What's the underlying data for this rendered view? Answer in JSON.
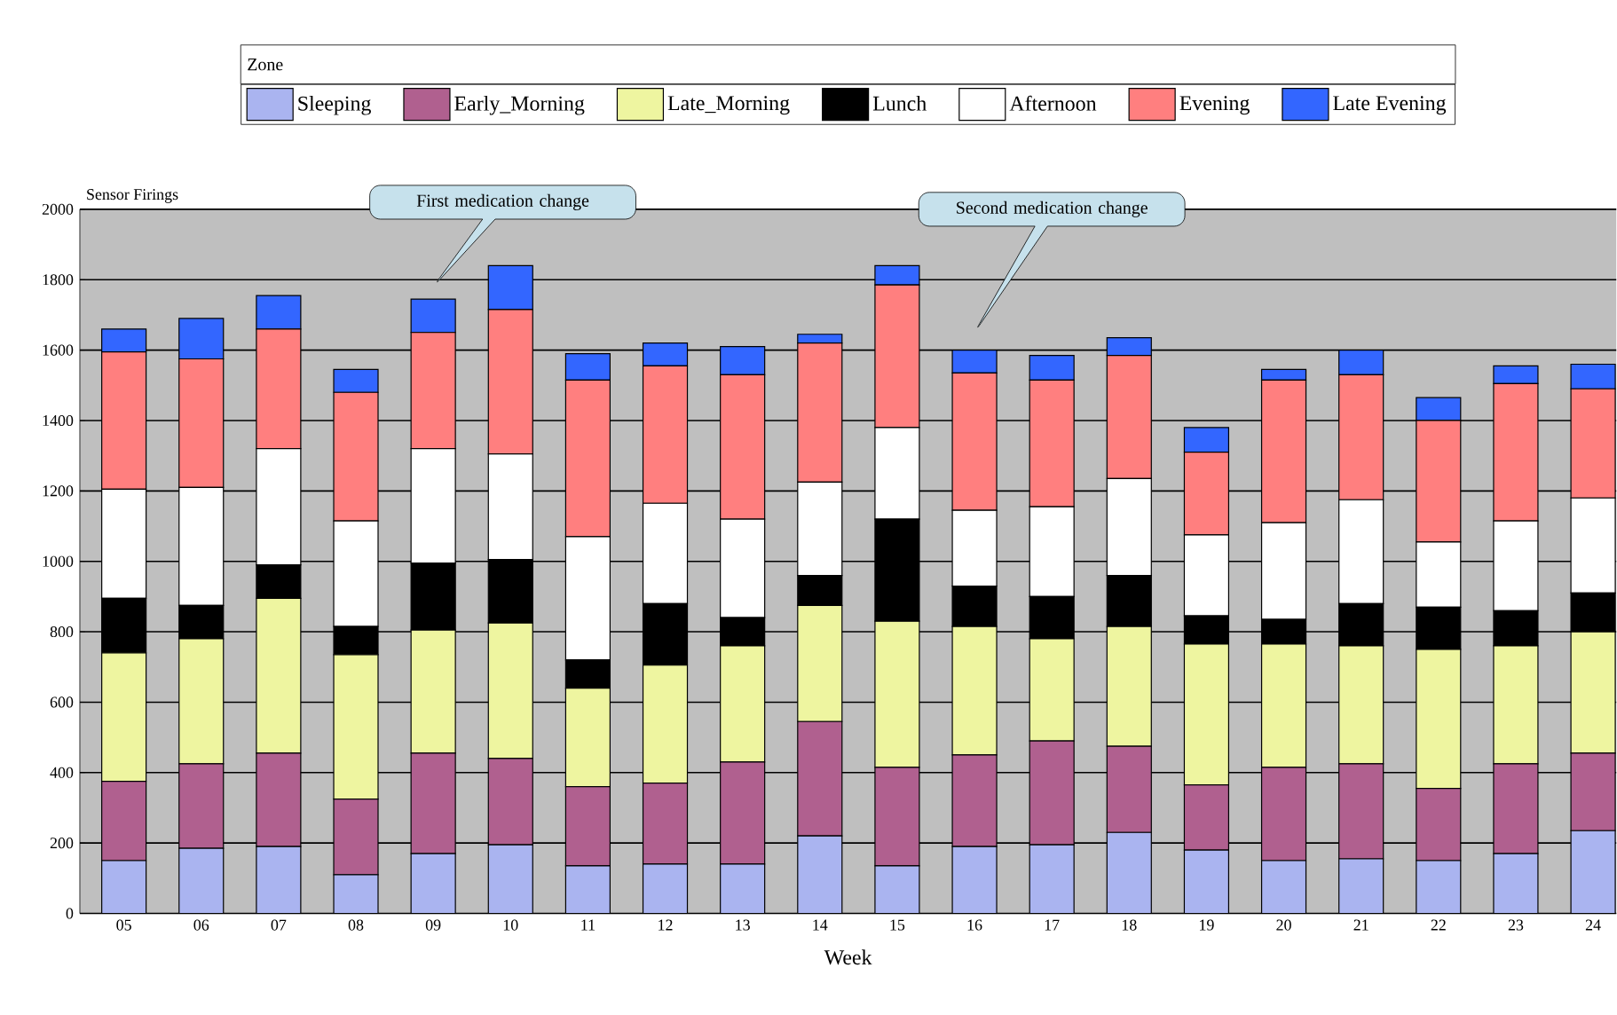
{
  "chart_data": {
    "type": "bar",
    "stacked": true,
    "ylabel": "Sensor Firings",
    "xlabel": "Week",
    "legend_title": "Zone",
    "legend": "top",
    "grid": "y",
    "categories": [
      "05",
      "06",
      "07",
      "08",
      "09",
      "10",
      "11",
      "12",
      "13",
      "14",
      "15",
      "16",
      "17",
      "18",
      "19",
      "20",
      "21",
      "22",
      "23",
      "24"
    ],
    "ylim": [
      0,
      2000
    ],
    "yticks": [
      0,
      200,
      400,
      600,
      800,
      1000,
      1200,
      1400,
      1600,
      1800,
      2000
    ],
    "series": [
      {
        "name": "Sleeping",
        "color": "#aab4f0",
        "values": [
          150,
          185,
          190,
          110,
          170,
          195,
          135,
          140,
          140,
          220,
          135,
          190,
          195,
          230,
          180,
          150,
          155,
          150,
          170,
          235
        ]
      },
      {
        "name": "Early_Morning",
        "color": "#b0608f",
        "values": [
          225,
          240,
          265,
          215,
          285,
          245,
          225,
          230,
          290,
          325,
          280,
          260,
          295,
          245,
          185,
          265,
          270,
          205,
          255,
          220
        ]
      },
      {
        "name": "Late_Morning",
        "color": "#eef5a0",
        "values": [
          365,
          355,
          440,
          410,
          350,
          385,
          280,
          335,
          330,
          330,
          415,
          365,
          290,
          340,
          400,
          350,
          335,
          395,
          335,
          345
        ]
      },
      {
        "name": "Lunch",
        "color": "#000000",
        "values": [
          155,
          95,
          95,
          80,
          190,
          180,
          80,
          175,
          80,
          85,
          290,
          115,
          120,
          145,
          80,
          70,
          120,
          120,
          100,
          110
        ]
      },
      {
        "name": "Afternoon",
        "color": "#ffffff",
        "values": [
          310,
          335,
          330,
          300,
          325,
          300,
          350,
          285,
          280,
          265,
          260,
          215,
          255,
          275,
          230,
          275,
          295,
          185,
          255,
          270
        ]
      },
      {
        "name": "Evening",
        "color": "#ff7f7f",
        "values": [
          390,
          365,
          340,
          365,
          330,
          410,
          445,
          390,
          410,
          395,
          405,
          390,
          360,
          350,
          235,
          405,
          355,
          345,
          390,
          310
        ]
      },
      {
        "name": "Late Evening",
        "color": "#3366ff",
        "values": [
          65,
          115,
          95,
          65,
          95,
          125,
          75,
          65,
          80,
          25,
          55,
          65,
          70,
          50,
          70,
          30,
          70,
          65,
          50,
          70
        ]
      }
    ],
    "annotations": [
      "First medication change",
      "Second medication change"
    ]
  }
}
